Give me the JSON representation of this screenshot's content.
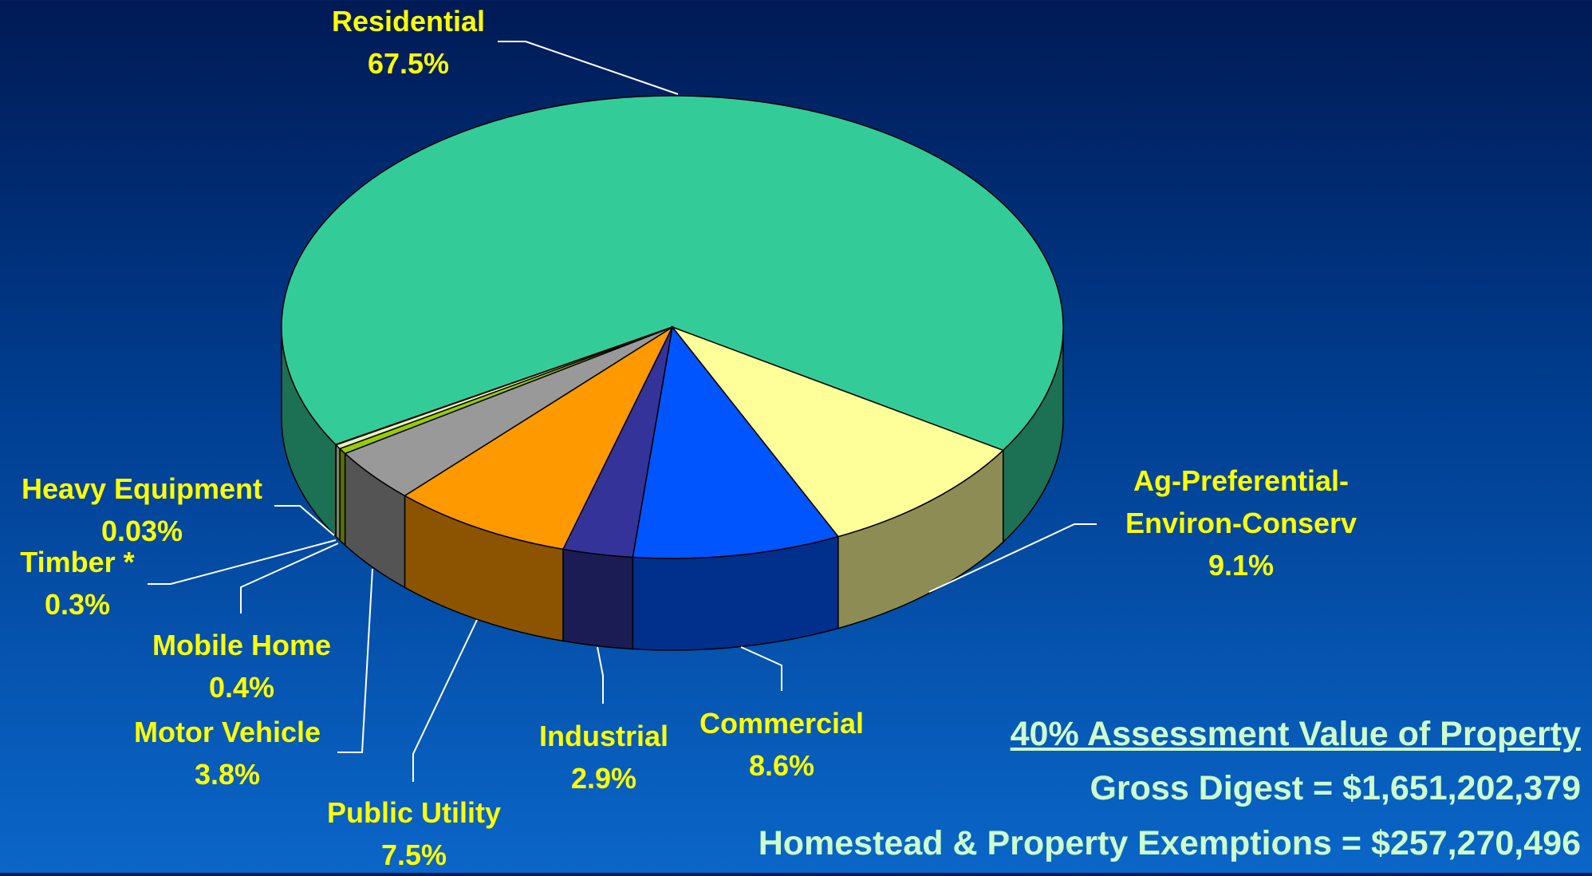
{
  "chart_data": {
    "type": "pie",
    "categories": [
      "Residential",
      "Ag-Preferential-Environ-Conserv",
      "Commercial",
      "Industrial",
      "Public Utility",
      "Motor Vehicle",
      "Mobile Home",
      "Timber *",
      "Heavy Equipment"
    ],
    "values": [
      67.5,
      9.1,
      8.6,
      2.9,
      7.5,
      3.8,
      0.4,
      0.3,
      0.03
    ],
    "value_labels": [
      "67.5%",
      "9.1%",
      "8.6%",
      "2.9%",
      "7.5%",
      "3.8%",
      "0.4%",
      "0.3%",
      "0.03%"
    ],
    "colors": [
      "#33cc99",
      "#ffff99",
      "#0055ff",
      "#333399",
      "#ff9900",
      "#999999",
      "#99cc00",
      "#e8f0c0",
      "#ffffff"
    ],
    "annotations": [
      "40% Assessment Value of Property",
      "Gross Digest = $1,651,202,379",
      "Homestead & Property Exemptions = $257,270,496"
    ]
  }
}
